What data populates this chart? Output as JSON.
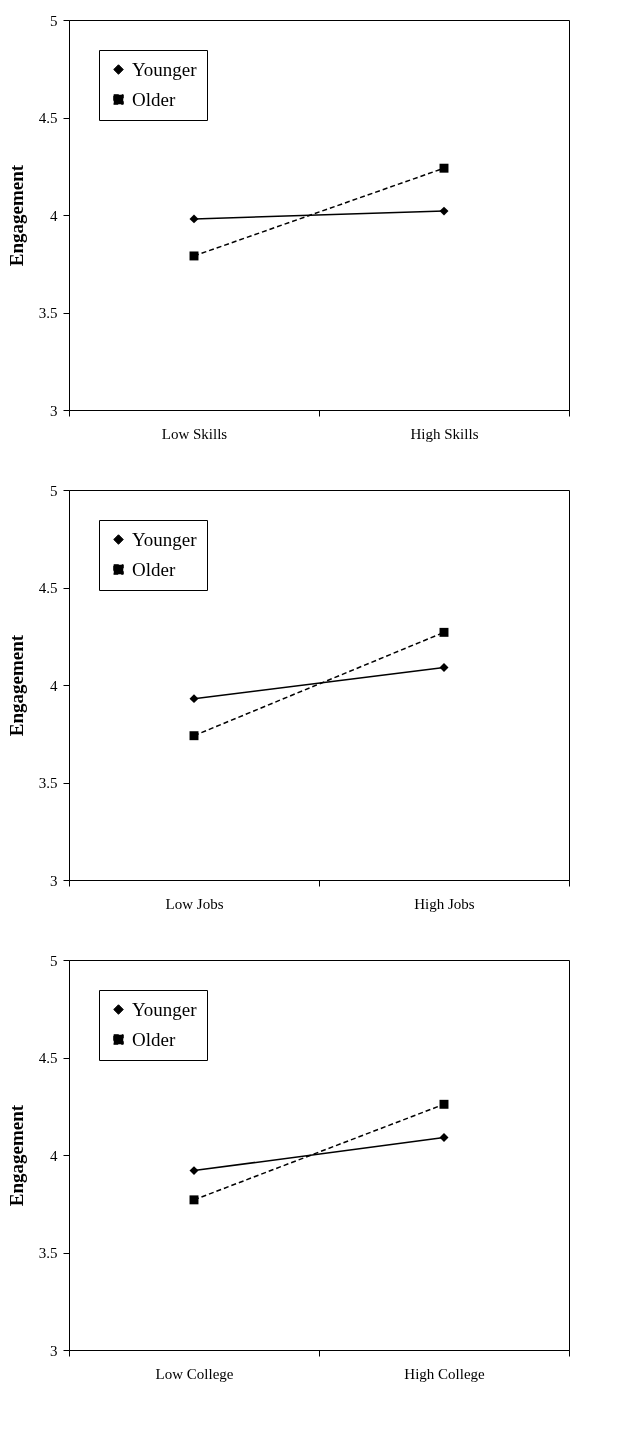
{
  "chart_data": [
    {
      "type": "line",
      "categories": [
        "Low Skills",
        "High Skills"
      ],
      "ylabel": "Engagement",
      "ylim": [
        3,
        5
      ],
      "yticks": [
        3,
        3.5,
        4,
        4.5,
        5
      ],
      "grid": false,
      "legend": "top left",
      "series": [
        {
          "name": "Younger",
          "color": "#000000",
          "marker": "diamond",
          "line_style": "solid",
          "values": [
            3.98,
            4.02
          ]
        },
        {
          "name": "Older",
          "color": "#000000",
          "marker": "square",
          "line_style": "dashed",
          "values": [
            3.79,
            4.24
          ]
        }
      ]
    },
    {
      "type": "line",
      "categories": [
        "Low Jobs",
        "High Jobs"
      ],
      "ylabel": "Engagement",
      "ylim": [
        3,
        5
      ],
      "yticks": [
        3,
        3.5,
        4,
        4.5,
        5
      ],
      "grid": false,
      "legend": "top left",
      "series": [
        {
          "name": "Younger",
          "color": "#000000",
          "marker": "diamond",
          "line_style": "solid",
          "values": [
            3.93,
            4.09
          ]
        },
        {
          "name": "Older",
          "color": "#000000",
          "marker": "square",
          "line_style": "dashed",
          "values": [
            3.74,
            4.27
          ]
        }
      ]
    },
    {
      "type": "line",
      "categories": [
        "Low College",
        "High College"
      ],
      "ylabel": "Engagement",
      "ylim": [
        3,
        5
      ],
      "yticks": [
        3,
        3.5,
        4,
        4.5,
        5
      ],
      "grid": false,
      "legend": "top left",
      "series": [
        {
          "name": "Younger",
          "color": "#000000",
          "marker": "diamond",
          "line_style": "solid",
          "values": [
            3.92,
            4.09
          ]
        },
        {
          "name": "Older",
          "color": "#000000",
          "marker": "square",
          "line_style": "dashed",
          "values": [
            3.77,
            4.26
          ]
        }
      ]
    }
  ]
}
